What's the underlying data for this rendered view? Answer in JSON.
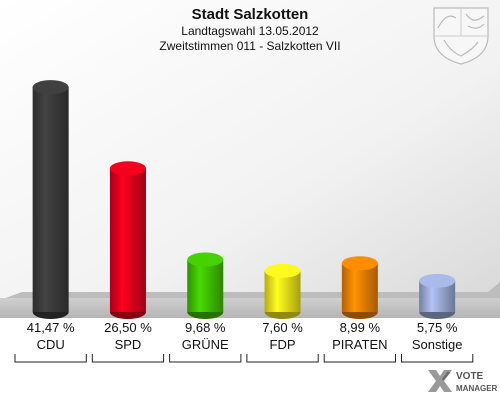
{
  "chart_data": {
    "type": "bar",
    "title": "Stadt Salzkotten",
    "subtitle_1": "Landtagswahl 13.05.2012",
    "subtitle_2": "Zweitstimmen 011 - Salzkotten VII",
    "categories": [
      "CDU",
      "SPD",
      "GRÜNE",
      "FDP",
      "PIRATEN",
      "Sonstige"
    ],
    "values": [
      41.47,
      26.5,
      9.68,
      7.6,
      8.99,
      5.75
    ],
    "value_labels": [
      "41,47 %",
      "26,50 %",
      "9,68 %",
      "7,60 %",
      "8,99 %",
      "5,75 %"
    ],
    "colors": [
      "#3a3a3a",
      "#e0001b",
      "#3fbf00",
      "#f2e21a",
      "#f08000",
      "#9aaad4"
    ],
    "ylim": [
      0,
      45
    ],
    "grid": false
  },
  "logo": {
    "line1": "VOTE",
    "line2": "MANAGER",
    "icon": "vote-manager-logo"
  },
  "crest": {
    "icon": "nrw-coat-of-arms-icon"
  }
}
